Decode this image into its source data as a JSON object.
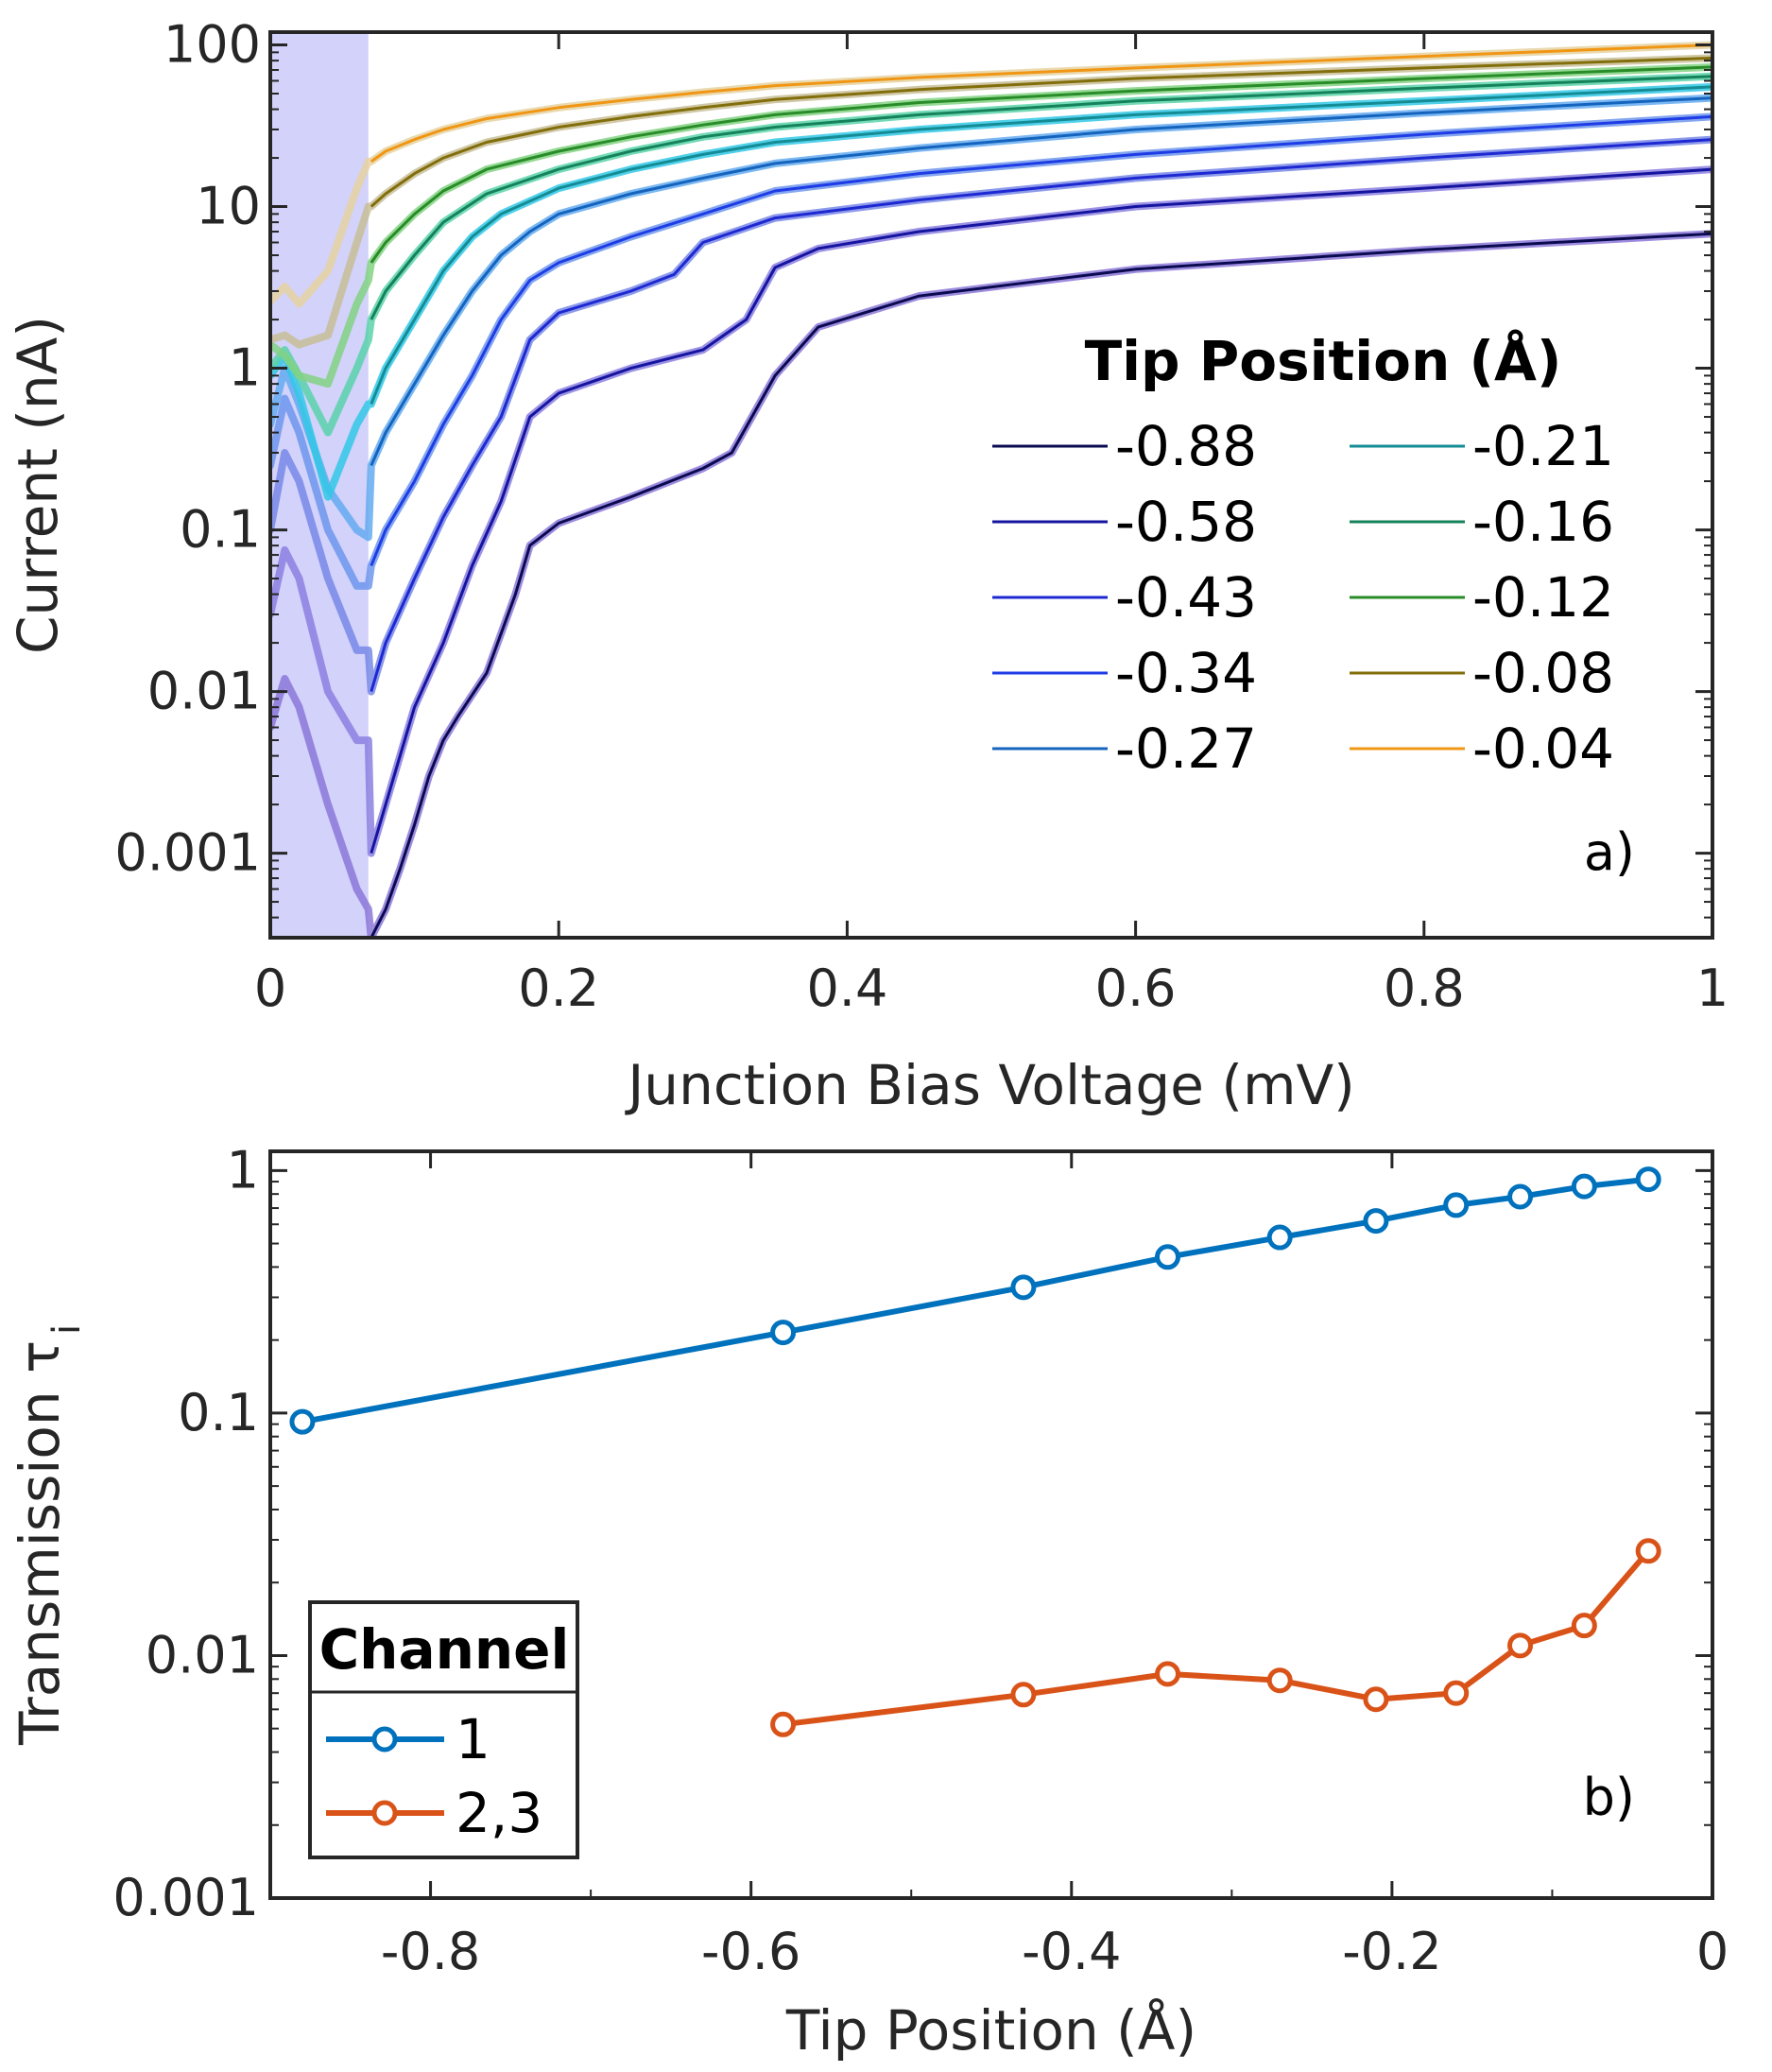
{
  "chart_data": [
    {
      "type": "line",
      "panel_label": "a)",
      "xlabel": "Junction Bias Voltage (mV)",
      "ylabel": "Current (nA)",
      "xlim": [
        0,
        1
      ],
      "ylim": [
        0.0003,
        120
      ],
      "yscale": "log",
      "x_ticks": [
        "0",
        "0.2",
        "0.4",
        "0.6",
        "0.8",
        "1"
      ],
      "y_ticks": [
        "0.001",
        "0.01",
        "0.1",
        "1",
        "10",
        "100"
      ],
      "shaded_region": {
        "x_range": [
          0,
          0.068
        ],
        "color": "#d2d2fa"
      },
      "legend": {
        "title": "Tip Position (Å)",
        "position": "center-right",
        "columns": 2
      },
      "series": [
        {
          "name": "-0.88",
          "color": "#0a0a50",
          "shade_color": "#8c78d8",
          "x": [
            0.07,
            0.08,
            0.09,
            0.1,
            0.11,
            0.12,
            0.13,
            0.15,
            0.17,
            0.18,
            0.2,
            0.25,
            0.3,
            0.32,
            0.35,
            0.38,
            0.45,
            0.6,
            0.8,
            1.0
          ],
          "y": [
            0.0003,
            0.00045,
            0.0008,
            0.0015,
            0.003,
            0.005,
            0.007,
            0.013,
            0.04,
            0.08,
            0.11,
            0.16,
            0.24,
            0.3,
            0.9,
            1.8,
            2.8,
            4.1,
            5.4,
            6.8
          ],
          "shade_x": [
            0,
            0.01,
            0.02,
            0.04,
            0.06,
            0.068
          ],
          "shade_y": [
            0.006,
            0.012,
            0.008,
            0.002,
            0.0006,
            0.00045
          ]
        },
        {
          "name": "-0.58",
          "color": "#1414a0",
          "shade_color": "#8c80e0",
          "x": [
            0.07,
            0.08,
            0.09,
            0.1,
            0.12,
            0.14,
            0.16,
            0.18,
            0.2,
            0.25,
            0.3,
            0.33,
            0.35,
            0.38,
            0.45,
            0.6,
            0.8,
            1.0
          ],
          "y": [
            0.001,
            0.002,
            0.004,
            0.008,
            0.02,
            0.06,
            0.15,
            0.5,
            0.7,
            1.0,
            1.3,
            2.0,
            4.2,
            5.5,
            7.0,
            10.0,
            13.0,
            17.0
          ],
          "shade_x": [
            0,
            0.01,
            0.02,
            0.04,
            0.06,
            0.068
          ],
          "shade_y": [
            0.03,
            0.075,
            0.05,
            0.01,
            0.005,
            0.005
          ]
        },
        {
          "name": "-0.43",
          "color": "#1e28d2",
          "shade_color": "#7888e6",
          "x": [
            0.07,
            0.08,
            0.1,
            0.12,
            0.14,
            0.16,
            0.18,
            0.2,
            0.25,
            0.28,
            0.3,
            0.35,
            0.45,
            0.6,
            0.8,
            1.0
          ],
          "y": [
            0.01,
            0.02,
            0.05,
            0.12,
            0.25,
            0.5,
            1.5,
            2.2,
            3.0,
            3.8,
            6.0,
            8.5,
            11.0,
            15.0,
            20.0,
            26.0
          ],
          "shade_x": [
            0,
            0.01,
            0.02,
            0.04,
            0.06,
            0.068
          ],
          "shade_y": [
            0.1,
            0.3,
            0.2,
            0.05,
            0.018,
            0.018
          ]
        },
        {
          "name": "-0.34",
          "color": "#1e3ce6",
          "shade_color": "#6e96ec",
          "x": [
            0.07,
            0.08,
            0.1,
            0.12,
            0.14,
            0.16,
            0.18,
            0.2,
            0.25,
            0.3,
            0.35,
            0.45,
            0.6,
            0.8,
            1.0
          ],
          "y": [
            0.06,
            0.1,
            0.2,
            0.45,
            0.9,
            2.0,
            3.5,
            4.5,
            6.5,
            9.0,
            12.5,
            16.0,
            21.0,
            28.0,
            36.0
          ],
          "shade_x": [
            0,
            0.01,
            0.02,
            0.04,
            0.06,
            0.068
          ],
          "shade_y": [
            0.25,
            0.65,
            0.4,
            0.1,
            0.045,
            0.045
          ]
        },
        {
          "name": "-0.27",
          "color": "#1464be",
          "shade_color": "#64aaf0",
          "x": [
            0.07,
            0.08,
            0.1,
            0.12,
            0.14,
            0.16,
            0.18,
            0.2,
            0.25,
            0.3,
            0.35,
            0.45,
            0.6,
            0.8,
            1.0
          ],
          "y": [
            0.25,
            0.4,
            0.8,
            1.6,
            3.0,
            5.0,
            7.0,
            9.0,
            12.0,
            15.0,
            18.5,
            23.0,
            30.0,
            38.0,
            47.0
          ],
          "shade_x": [
            0,
            0.01,
            0.02,
            0.04,
            0.06,
            0.068
          ],
          "shade_y": [
            0.45,
            1.0,
            0.6,
            0.18,
            0.1,
            0.09
          ]
        },
        {
          "name": "-0.21",
          "color": "#148c96",
          "shade_color": "#32c8e6",
          "x": [
            0.07,
            0.08,
            0.1,
            0.12,
            0.14,
            0.16,
            0.2,
            0.25,
            0.3,
            0.35,
            0.45,
            0.6,
            0.8,
            1.0
          ],
          "y": [
            0.6,
            1.0,
            2.0,
            4.0,
            6.5,
            9.0,
            13.0,
            17.0,
            21.0,
            25.0,
            30.0,
            37.0,
            45.0,
            55.0
          ],
          "shade_x": [
            0,
            0.01,
            0.02,
            0.04,
            0.06,
            0.068
          ],
          "shade_y": [
            0.9,
            1.2,
            0.7,
            0.16,
            0.45,
            0.6
          ]
        },
        {
          "name": "-0.16",
          "color": "#14825a",
          "shade_color": "#5ad2aa",
          "x": [
            0.07,
            0.08,
            0.1,
            0.12,
            0.15,
            0.2,
            0.25,
            0.3,
            0.35,
            0.45,
            0.6,
            0.8,
            1.0
          ],
          "y": [
            2.0,
            3.0,
            5.0,
            8.0,
            12.0,
            17.0,
            22.0,
            27.0,
            31.0,
            37.0,
            45.0,
            54.0,
            64.0
          ],
          "shade_x": [
            0,
            0.01,
            0.02,
            0.04,
            0.06,
            0.068
          ],
          "shade_y": [
            1.0,
            1.3,
            0.9,
            0.4,
            1.0,
            1.5
          ]
        },
        {
          "name": "-0.12",
          "color": "#288c28",
          "shade_color": "#82d282",
          "x": [
            0.07,
            0.08,
            0.1,
            0.12,
            0.15,
            0.2,
            0.25,
            0.3,
            0.35,
            0.45,
            0.6,
            0.8,
            1.0
          ],
          "y": [
            4.5,
            6.0,
            9.0,
            12.5,
            17.0,
            22.0,
            27.0,
            32.0,
            37.0,
            44.0,
            52.0,
            62.0,
            73.0
          ],
          "shade_x": [
            0,
            0.01,
            0.02,
            0.04,
            0.06,
            0.068
          ],
          "shade_y": [
            1.4,
            1.2,
            0.9,
            0.8,
            2.5,
            3.5
          ]
        },
        {
          "name": "-0.08",
          "color": "#826e0a",
          "shade_color": "#c8be96",
          "x": [
            0.07,
            0.08,
            0.1,
            0.12,
            0.15,
            0.2,
            0.25,
            0.3,
            0.35,
            0.45,
            0.6,
            0.8,
            1.0
          ],
          "y": [
            10.0,
            12.0,
            16.0,
            20.0,
            25.0,
            31.0,
            36.0,
            41.0,
            46.0,
            53.0,
            62.0,
            72.0,
            83.0
          ],
          "shade_x": [
            0,
            0.01,
            0.02,
            0.04,
            0.06,
            0.068
          ],
          "shade_y": [
            1.5,
            1.6,
            1.4,
            1.6,
            6.0,
            10.0
          ]
        },
        {
          "name": "-0.04",
          "color": "#f09614",
          "shade_color": "#e6d2a0",
          "x": [
            0.07,
            0.08,
            0.1,
            0.12,
            0.15,
            0.2,
            0.25,
            0.3,
            0.35,
            0.45,
            0.6,
            0.8,
            1.0
          ],
          "y": [
            19.0,
            22.0,
            26.0,
            30.0,
            35.0,
            41.0,
            46.0,
            51.0,
            56.0,
            63.0,
            72.0,
            85.0,
            100.0
          ],
          "shade_x": [
            0,
            0.01,
            0.02,
            0.04,
            0.06,
            0.068
          ],
          "shade_y": [
            2.6,
            3.2,
            2.5,
            4.0,
            13.0,
            19.0
          ]
        }
      ]
    },
    {
      "type": "line",
      "panel_label": "b)",
      "xlabel": "Tip Position (Å)",
      "ylabel": "Transmission τ",
      "ylabel_subscript": "i",
      "xlim": [
        -0.9,
        0
      ],
      "ylim": [
        0.001,
        1.2
      ],
      "yscale": "log",
      "x_ticks": [
        "-0.8",
        "-0.6",
        "-0.4",
        "-0.2",
        "0"
      ],
      "y_ticks": [
        "0.001",
        "0.01",
        "0.1",
        "1"
      ],
      "legend": {
        "title": "Channel",
        "position": "bottom-left"
      },
      "series": [
        {
          "name": "1",
          "color": "#0072bd",
          "x": [
            -0.88,
            -0.58,
            -0.43,
            -0.34,
            -0.27,
            -0.21,
            -0.16,
            -0.12,
            -0.08,
            -0.04
          ],
          "y": [
            0.092,
            0.215,
            0.33,
            0.44,
            0.53,
            0.62,
            0.72,
            0.78,
            0.86,
            0.92
          ]
        },
        {
          "name": "2,3",
          "color": "#d95319",
          "x": [
            -0.58,
            -0.43,
            -0.34,
            -0.27,
            -0.21,
            -0.16,
            -0.12,
            -0.08,
            -0.04
          ],
          "y": [
            0.0052,
            0.0069,
            0.0084,
            0.0079,
            0.0066,
            0.007,
            0.011,
            0.0133,
            0.027
          ]
        }
      ]
    }
  ]
}
